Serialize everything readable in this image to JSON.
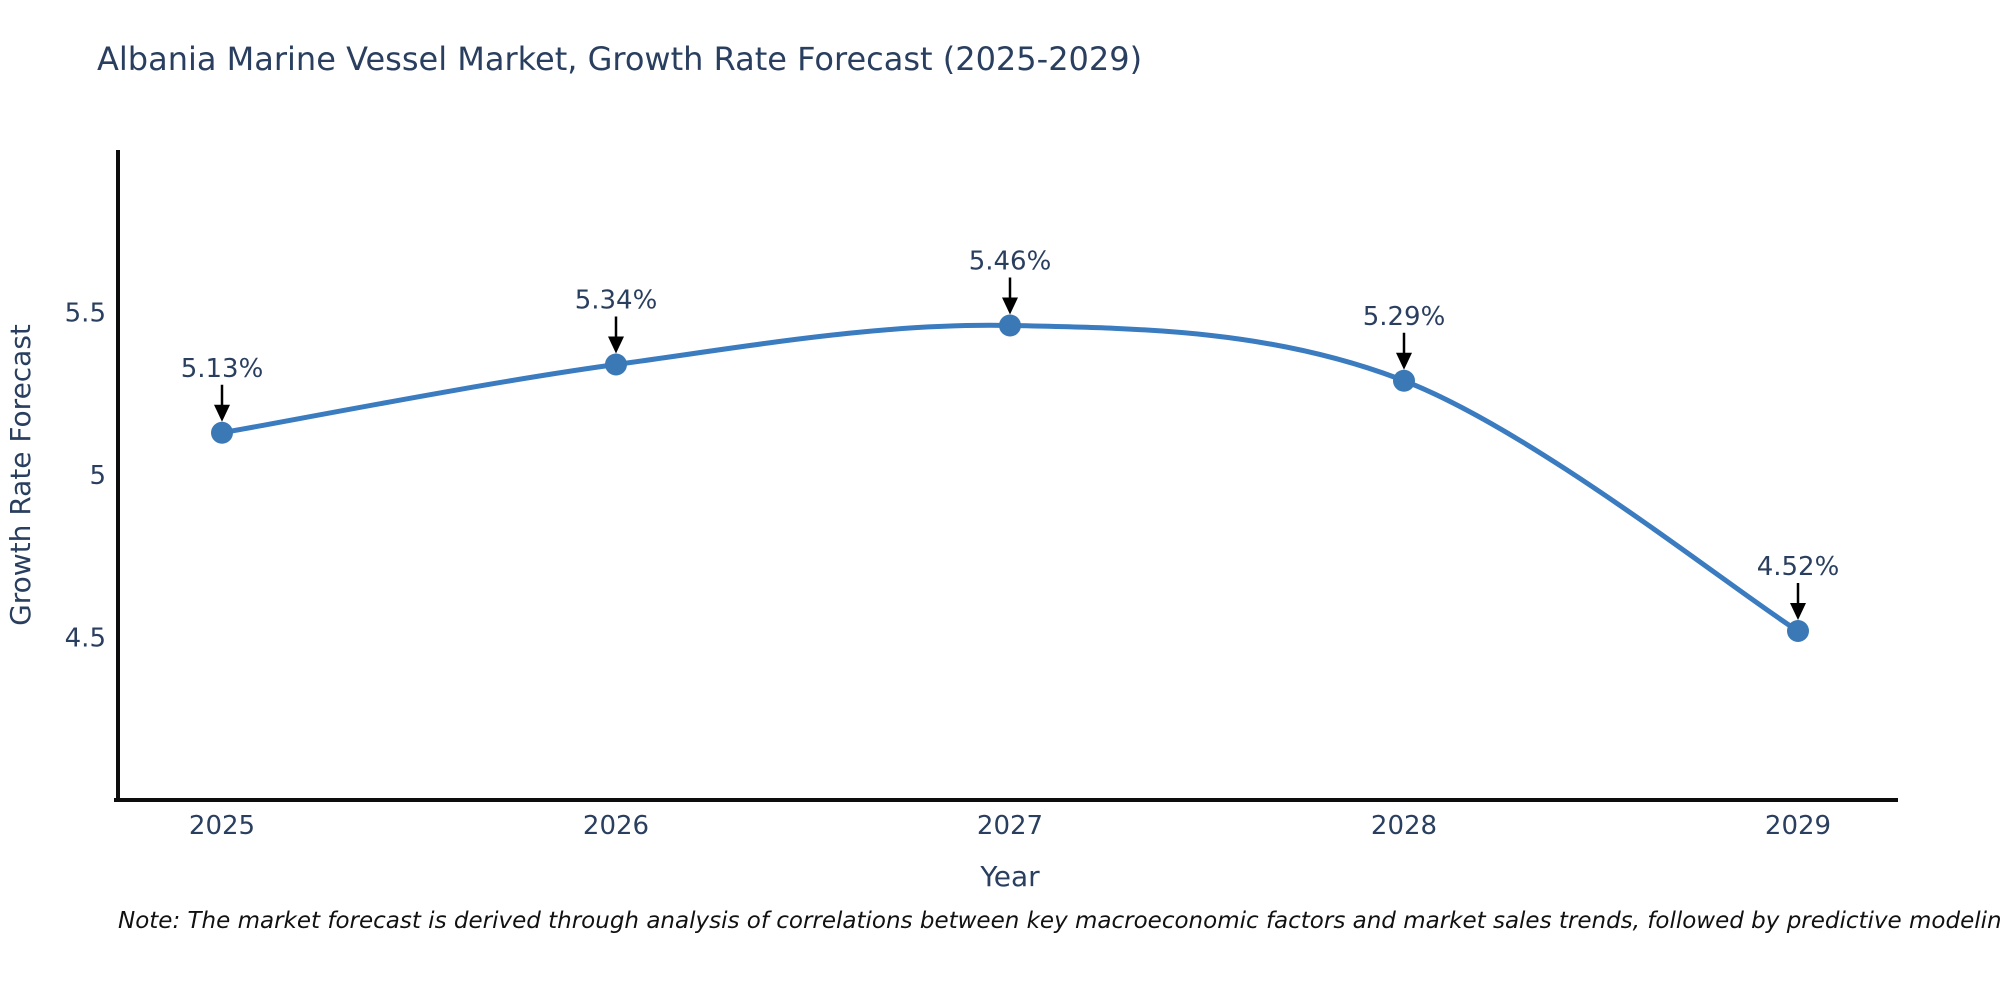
{
  "title": "Albania Marine Vessel Market, Growth Rate Forecast (2025-2029)",
  "note": "Note: The market forecast is derived through analysis of correlations between key macroeconomic factors and market sales trends, followed by predictive modeling to project future sales",
  "chart_data": {
    "type": "line",
    "title": "Albania Marine Vessel Market, Growth Rate Forecast (2025-2029)",
    "xlabel": "Year",
    "ylabel": "Growth Rate Forecast",
    "x": [
      "2025",
      "2026",
      "2027",
      "2028",
      "2029"
    ],
    "values": [
      5.13,
      5.34,
      5.46,
      5.29,
      4.52
    ],
    "point_labels": [
      "5.13%",
      "5.34%",
      "5.46%",
      "5.29%",
      "4.52%"
    ],
    "yticks": [
      4.5,
      5,
      5.5
    ],
    "ytick_labels": [
      "4.5",
      "5",
      "5.5"
    ],
    "ylim": [
      4.0,
      6.0
    ],
    "line_shape": "spline",
    "grid": false,
    "legend_position": "none",
    "line_color": "#3a7cbf",
    "marker_color": "#3a78b6",
    "axis_color": "#0d0d0d",
    "text_color": "#2a3f5f",
    "annotation_arrow_color": "#000000"
  }
}
